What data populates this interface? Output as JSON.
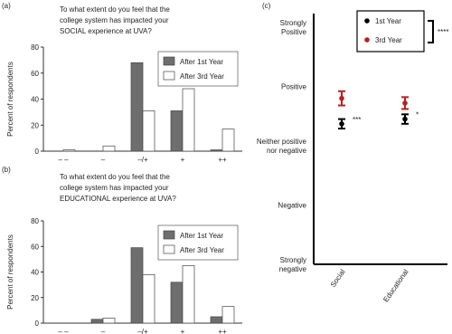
{
  "chart_data": [
    {
      "type": "bar",
      "panel": "(a)",
      "title": [
        "To what extent do you feel that the",
        "college system has impacted your",
        "SOCIAL experience at UVA?"
      ],
      "ylabel": "Percent of respondents",
      "categories": [
        "– –",
        "–",
        "–/+",
        "+",
        "++"
      ],
      "series": [
        {
          "name": "After 1st Year",
          "color": "#6e6e6e",
          "values": [
            0,
            0,
            68,
            31,
            1
          ]
        },
        {
          "name": "After 3rd Year",
          "color": "#ffffff",
          "values": [
            1,
            4,
            31,
            48,
            17
          ]
        }
      ],
      "ylim": [
        0,
        80
      ],
      "yticks": [
        0,
        20,
        40,
        60,
        80
      ],
      "legend": "upper right"
    },
    {
      "type": "bar",
      "panel": "(b)",
      "title": [
        "To what extent do you feel that the",
        "college system has impacted your",
        "EDUCATIONAL experience at UVA?"
      ],
      "ylabel": "Percent of respondents",
      "categories": [
        "– –",
        "–",
        "–/+",
        "+",
        "++"
      ],
      "series": [
        {
          "name": "After 1st Year",
          "color": "#6e6e6e",
          "values": [
            0,
            3,
            59,
            32,
            5
          ]
        },
        {
          "name": "After 3rd Year",
          "color": "#ffffff",
          "values": [
            0,
            4,
            38,
            45,
            13
          ]
        }
      ],
      "ylim": [
        0,
        80
      ],
      "yticks": [
        0,
        20,
        40,
        60,
        80
      ],
      "legend": "upper right"
    },
    {
      "type": "errorpoint",
      "panel": "(c)",
      "categories": [
        "Social",
        "Educational"
      ],
      "series": [
        {
          "name": "1st Year",
          "color": "#000000",
          "values": [
            3.37,
            3.45
          ],
          "errors": [
            0.08,
            0.08
          ]
        },
        {
          "name": "3rd Year",
          "color": "#b22222",
          "values": [
            3.8,
            3.72
          ],
          "errors": [
            0.12,
            0.1
          ]
        }
      ],
      "ylim": [
        1,
        5.23
      ],
      "yticks": [
        {
          "value": 1,
          "label": [
            "Strongly",
            "negative"
          ]
        },
        {
          "value": 2,
          "label": [
            "Negative"
          ]
        },
        {
          "value": 3,
          "label": [
            "Neither positive",
            "nor negative"
          ]
        },
        {
          "value": 4,
          "label": [
            "Positive"
          ]
        },
        {
          "value": 5,
          "label": [
            "Strongly",
            "Positive"
          ]
        }
      ],
      "annotations": [
        "***",
        "*"
      ],
      "legend_annotation": "****",
      "legend": "upper right"
    }
  ]
}
